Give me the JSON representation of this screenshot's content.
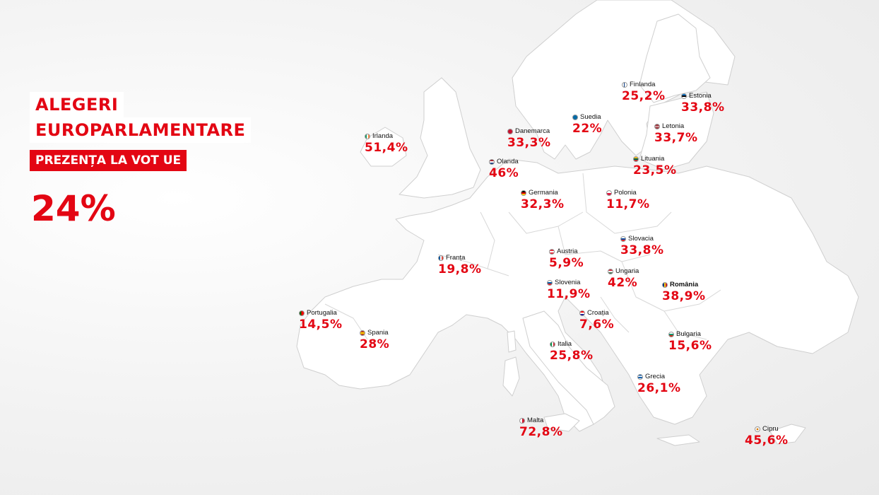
{
  "header": {
    "title_line1": "ALEGERI",
    "title_line2": "EUROPARLAMENTARE",
    "subtitle": "PREZENȚA LA VOT UE",
    "eu_turnout": "24%"
  },
  "colors": {
    "accent": "#e30613",
    "land": "#ffffff",
    "border": "#cfcfcf"
  },
  "countries": [
    {
      "name": "Finlanda",
      "value": "25,2%",
      "flag": "finland-flag-icon"
    },
    {
      "name": "Estonia",
      "value": "33,8%",
      "flag": "estonia-flag-icon"
    },
    {
      "name": "Suedia",
      "value": "22%",
      "flag": "sweden-flag-icon"
    },
    {
      "name": "Letonia",
      "value": "33,7%",
      "flag": "latvia-flag-icon"
    },
    {
      "name": "Irlanda",
      "value": "51,4%",
      "flag": "ireland-flag-icon"
    },
    {
      "name": "Danemarca",
      "value": "33,3%",
      "flag": "denmark-flag-icon"
    },
    {
      "name": "Lituania",
      "value": "23,5%",
      "flag": "lithuania-flag-icon"
    },
    {
      "name": "Olanda",
      "value": "46%",
      "flag": "netherlands-flag-icon"
    },
    {
      "name": "Germania",
      "value": "32,3%",
      "flag": "germany-flag-icon"
    },
    {
      "name": "Polonia",
      "value": "11,7%",
      "flag": "poland-flag-icon"
    },
    {
      "name": "Slovacia",
      "value": "33,8%",
      "flag": "slovakia-flag-icon"
    },
    {
      "name": "Franța",
      "value": "19,8%",
      "flag": "france-flag-icon"
    },
    {
      "name": "Austria",
      "value": "5,9%",
      "flag": "austria-flag-icon"
    },
    {
      "name": "Ungaria",
      "value": "42%",
      "flag": "hungary-flag-icon"
    },
    {
      "name": "Slovenia",
      "value": "11,9%",
      "flag": "slovenia-flag-icon"
    },
    {
      "name": "România",
      "value": "38,9%",
      "flag": "romania-flag-icon"
    },
    {
      "name": "Portugalia",
      "value": "14,5%",
      "flag": "portugal-flag-icon"
    },
    {
      "name": "Croația",
      "value": "7,6%",
      "flag": "croatia-flag-icon"
    },
    {
      "name": "Spania",
      "value": "28%",
      "flag": "spain-flag-icon"
    },
    {
      "name": "Bulgaria",
      "value": "15,6%",
      "flag": "bulgaria-flag-icon"
    },
    {
      "name": "Italia",
      "value": "25,8%",
      "flag": "italy-flag-icon"
    },
    {
      "name": "Grecia",
      "value": "26,1%",
      "flag": "greece-flag-icon"
    },
    {
      "name": "Malta",
      "value": "72,8%",
      "flag": "malta-flag-icon"
    },
    {
      "name": "Cipru",
      "value": "45,6%",
      "flag": "cyprus-flag-icon"
    }
  ]
}
